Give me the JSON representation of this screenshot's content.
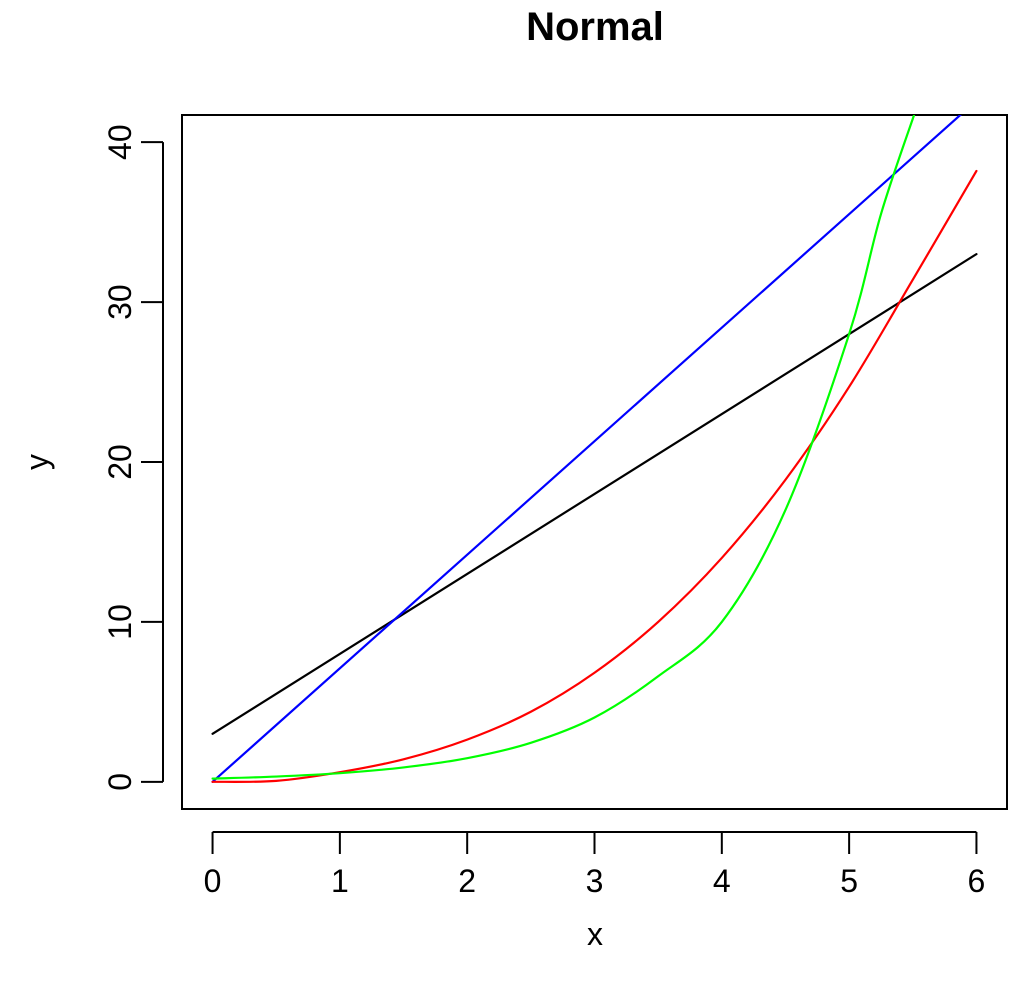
{
  "chart_data": {
    "type": "line",
    "title": "Normal",
    "xlabel": "x",
    "ylabel": "y",
    "xlim": [
      -0.24,
      6.24
    ],
    "ylim": [
      -1.7,
      41.7
    ],
    "x_ticks": [
      0,
      1,
      2,
      3,
      4,
      5,
      6
    ],
    "y_ticks": [
      0,
      10,
      20,
      30,
      40
    ],
    "grid": false,
    "series": [
      {
        "color": "#000000",
        "x": [
          0,
          6
        ],
        "y": [
          3,
          33
        ]
      },
      {
        "color": "#0000ff",
        "x": [
          0,
          6
        ],
        "y": [
          0,
          42.6
        ]
      },
      {
        "color": "#ff0000",
        "x": [
          0,
          0.5,
          1,
          1.5,
          2,
          2.5,
          3,
          3.5,
          4,
          4.5,
          5,
          5.5,
          6
        ],
        "y": [
          0,
          0.06,
          0.6,
          1.41,
          2.64,
          4.38,
          6.82,
          10.0,
          14.0,
          18.89,
          24.7,
          31.4,
          38.2
        ]
      },
      {
        "color": "#00ff00",
        "x": [
          0,
          0.5,
          1,
          1.5,
          2,
          2.5,
          3,
          3.5,
          4,
          4.5,
          5,
          5.25,
          5.51
        ],
        "y": [
          0.2,
          0.33,
          0.54,
          0.9,
          1.48,
          2.44,
          4.02,
          6.6,
          10.0,
          17.0,
          28.0,
          35.5,
          41.7
        ]
      }
    ]
  }
}
